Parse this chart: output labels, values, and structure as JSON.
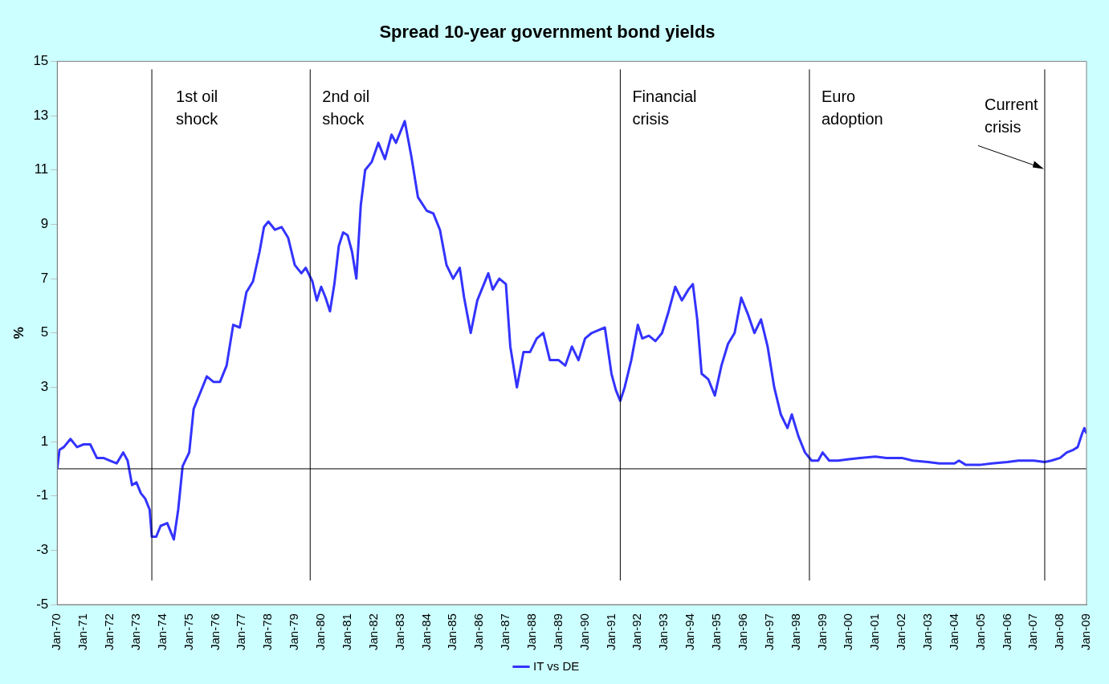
{
  "chart_data": {
    "type": "line",
    "title": "Spread 10-year government bond yields",
    "ylabel": "%",
    "x": [
      "1970-01",
      "1970-02",
      "1970-04",
      "1970-07",
      "1970-10",
      "1971-01",
      "1971-04",
      "1971-07",
      "1971-10",
      "1972-01",
      "1972-04",
      "1972-07",
      "1972-09",
      "1972-11",
      "1973-01",
      "1973-03",
      "1973-05",
      "1973-07",
      "1973-08",
      "1973-10",
      "1973-12",
      "1974-03",
      "1974-06",
      "1974-08",
      "1974-10",
      "1975-01",
      "1975-03",
      "1975-06",
      "1975-09",
      "1975-12",
      "1976-03",
      "1976-06",
      "1976-09",
      "1976-12",
      "1977-03",
      "1977-06",
      "1977-09",
      "1977-11",
      "1978-01",
      "1978-04",
      "1978-07",
      "1978-10",
      "1979-01",
      "1979-04",
      "1979-06",
      "1979-09",
      "1979-11",
      "1980-01",
      "1980-03",
      "1980-05",
      "1980-07",
      "1980-09",
      "1980-11",
      "1981-01",
      "1981-03",
      "1981-05",
      "1981-07",
      "1981-09",
      "1981-12",
      "1982-03",
      "1982-06",
      "1982-09",
      "1982-11",
      "1983-01",
      "1983-03",
      "1983-06",
      "1983-09",
      "1984-01",
      "1984-04",
      "1984-07",
      "1984-10",
      "1985-01",
      "1985-04",
      "1985-06",
      "1985-09",
      "1985-12",
      "1986-03",
      "1986-05",
      "1986-07",
      "1986-10",
      "1987-01",
      "1987-03",
      "1987-06",
      "1987-09",
      "1987-12",
      "1988-03",
      "1988-06",
      "1988-09",
      "1989-01",
      "1989-04",
      "1989-07",
      "1989-10",
      "1990-01",
      "1990-04",
      "1990-07",
      "1990-10",
      "1991-01",
      "1991-03",
      "1991-05",
      "1991-07",
      "1991-10",
      "1992-01",
      "1992-03",
      "1992-06",
      "1992-09",
      "1992-12",
      "1993-03",
      "1993-06",
      "1993-09",
      "1993-12",
      "1994-02",
      "1994-04",
      "1994-06",
      "1994-09",
      "1994-12",
      "1995-03",
      "1995-06",
      "1995-09",
      "1995-12",
      "1996-03",
      "1996-06",
      "1996-09",
      "1996-12",
      "1997-03",
      "1997-06",
      "1997-09",
      "1997-11",
      "1998-02",
      "1998-05",
      "1998-08",
      "1998-11",
      "1999-01",
      "1999-04",
      "1999-08",
      "2000-01",
      "2000-06",
      "2001-01",
      "2001-06",
      "2002-01",
      "2002-06",
      "2003-01",
      "2003-06",
      "2004-01",
      "2004-03",
      "2004-06",
      "2005-01",
      "2005-06",
      "2006-01",
      "2006-06",
      "2007-01",
      "2007-06",
      "2007-09",
      "2008-01",
      "2008-04",
      "2008-07",
      "2008-09",
      "2008-11",
      "2008-12",
      "2009-01"
    ],
    "series": [
      {
        "name": "IT vs DE",
        "color": "#3333ff",
        "values": [
          0.0,
          0.7,
          0.8,
          1.1,
          0.8,
          0.9,
          0.9,
          0.4,
          0.4,
          0.3,
          0.2,
          0.6,
          0.3,
          -0.6,
          -0.5,
          -0.9,
          -1.1,
          -1.5,
          -2.5,
          -2.5,
          -2.1,
          -2.0,
          -2.6,
          -1.5,
          0.1,
          0.6,
          2.2,
          2.8,
          3.4,
          3.2,
          3.2,
          3.8,
          5.3,
          5.2,
          6.5,
          6.9,
          8.0,
          8.9,
          9.1,
          8.8,
          8.9,
          8.5,
          7.5,
          7.2,
          7.4,
          6.9,
          6.2,
          6.7,
          6.3,
          5.8,
          6.8,
          8.2,
          8.7,
          8.6,
          8.0,
          7.0,
          9.7,
          11.0,
          11.3,
          12.0,
          11.4,
          12.3,
          12.0,
          12.4,
          12.8,
          11.5,
          10.0,
          9.5,
          9.4,
          8.8,
          7.5,
          7.0,
          7.4,
          6.3,
          5.0,
          6.2,
          6.8,
          7.2,
          6.6,
          7.0,
          6.8,
          4.5,
          3.0,
          4.3,
          4.3,
          4.8,
          5.0,
          4.0,
          4.0,
          3.8,
          4.5,
          4.0,
          4.8,
          5.0,
          5.1,
          5.2,
          3.5,
          2.9,
          2.5,
          3.0,
          4.0,
          5.3,
          4.8,
          4.9,
          4.7,
          5.0,
          5.8,
          6.7,
          6.2,
          6.6,
          6.8,
          5.5,
          3.5,
          3.3,
          2.7,
          3.8,
          4.6,
          5.0,
          6.3,
          5.7,
          5.0,
          5.5,
          4.5,
          3.0,
          2.0,
          1.5,
          2.0,
          1.2,
          0.6,
          0.3,
          0.3,
          0.6,
          0.3,
          0.3,
          0.35,
          0.4,
          0.45,
          0.4,
          0.4,
          0.3,
          0.25,
          0.2,
          0.2,
          0.3,
          0.15,
          0.15,
          0.2,
          0.25,
          0.3,
          0.3,
          0.25,
          0.3,
          0.4,
          0.6,
          0.7,
          0.8,
          1.3,
          1.5,
          1.3
        ]
      }
    ],
    "xlim": [
      "1970-01",
      "2009-01"
    ],
    "xticks": [
      {
        "value": "1970-01",
        "label": "Jan-70"
      },
      {
        "value": "1971-01",
        "label": "Jan-71"
      },
      {
        "value": "1972-01",
        "label": "Jan-72"
      },
      {
        "value": "1973-01",
        "label": "Jan-73"
      },
      {
        "value": "1974-01",
        "label": "Jan-74"
      },
      {
        "value": "1975-01",
        "label": "Jan-75"
      },
      {
        "value": "1976-01",
        "label": "Jan-76"
      },
      {
        "value": "1977-01",
        "label": "Jan-77"
      },
      {
        "value": "1978-01",
        "label": "Jan-78"
      },
      {
        "value": "1979-01",
        "label": "Jan-79"
      },
      {
        "value": "1980-01",
        "label": "Jan-80"
      },
      {
        "value": "1981-01",
        "label": "Jan-81"
      },
      {
        "value": "1982-01",
        "label": "Jan-82"
      },
      {
        "value": "1983-01",
        "label": "Jan-83"
      },
      {
        "value": "1984-01",
        "label": "Jan-84"
      },
      {
        "value": "1985-01",
        "label": "Jan-85"
      },
      {
        "value": "1986-01",
        "label": "Jan-86"
      },
      {
        "value": "1987-01",
        "label": "Jan-87"
      },
      {
        "value": "1988-01",
        "label": "Jan-88"
      },
      {
        "value": "1989-01",
        "label": "Jan-89"
      },
      {
        "value": "1990-01",
        "label": "Jan-90"
      },
      {
        "value": "1991-01",
        "label": "Jan-91"
      },
      {
        "value": "1992-01",
        "label": "Jan-92"
      },
      {
        "value": "1993-01",
        "label": "Jan-93"
      },
      {
        "value": "1994-01",
        "label": "Jan-94"
      },
      {
        "value": "1995-01",
        "label": "Jan-95"
      },
      {
        "value": "1996-01",
        "label": "Jan-96"
      },
      {
        "value": "1997-01",
        "label": "Jan-97"
      },
      {
        "value": "1998-01",
        "label": "Jan-98"
      },
      {
        "value": "1999-01",
        "label": "Jan-99"
      },
      {
        "value": "2000-01",
        "label": "Jan-00"
      },
      {
        "value": "2001-01",
        "label": "Jan-01"
      },
      {
        "value": "2002-01",
        "label": "Jan-02"
      },
      {
        "value": "2003-01",
        "label": "Jan-03"
      },
      {
        "value": "2004-01",
        "label": "Jan-04"
      },
      {
        "value": "2005-01",
        "label": "Jan-05"
      },
      {
        "value": "2006-01",
        "label": "Jan-06"
      },
      {
        "value": "2007-01",
        "label": "Jan-07"
      },
      {
        "value": "2008-01",
        "label": "Jan-08"
      },
      {
        "value": "2009-01",
        "label": "Jan-09"
      }
    ],
    "ylim": [
      -5,
      15
    ],
    "yticks": [
      -5,
      -3,
      -1,
      1,
      3,
      5,
      7,
      9,
      11,
      13,
      15
    ],
    "ref_lines": [
      {
        "axis": "y",
        "value": 0,
        "color": "#000000"
      },
      {
        "axis": "x",
        "value": "1973-08",
        "label": "1st oil shock",
        "color": "#000000"
      },
      {
        "axis": "x",
        "value": "1979-08",
        "label": "2nd oil shock",
        "color": "#000000"
      },
      {
        "axis": "x",
        "value": "1991-05",
        "label": "Financial crisis",
        "color": "#000000"
      },
      {
        "axis": "x",
        "value": "1998-07",
        "label": "Euro adoption",
        "color": "#000000"
      },
      {
        "axis": "x",
        "value": "2007-06",
        "label": "Current crisis",
        "color": "#000000"
      }
    ],
    "grid": false,
    "legend": "bottom",
    "marker": "none",
    "line_style": "solid"
  }
}
